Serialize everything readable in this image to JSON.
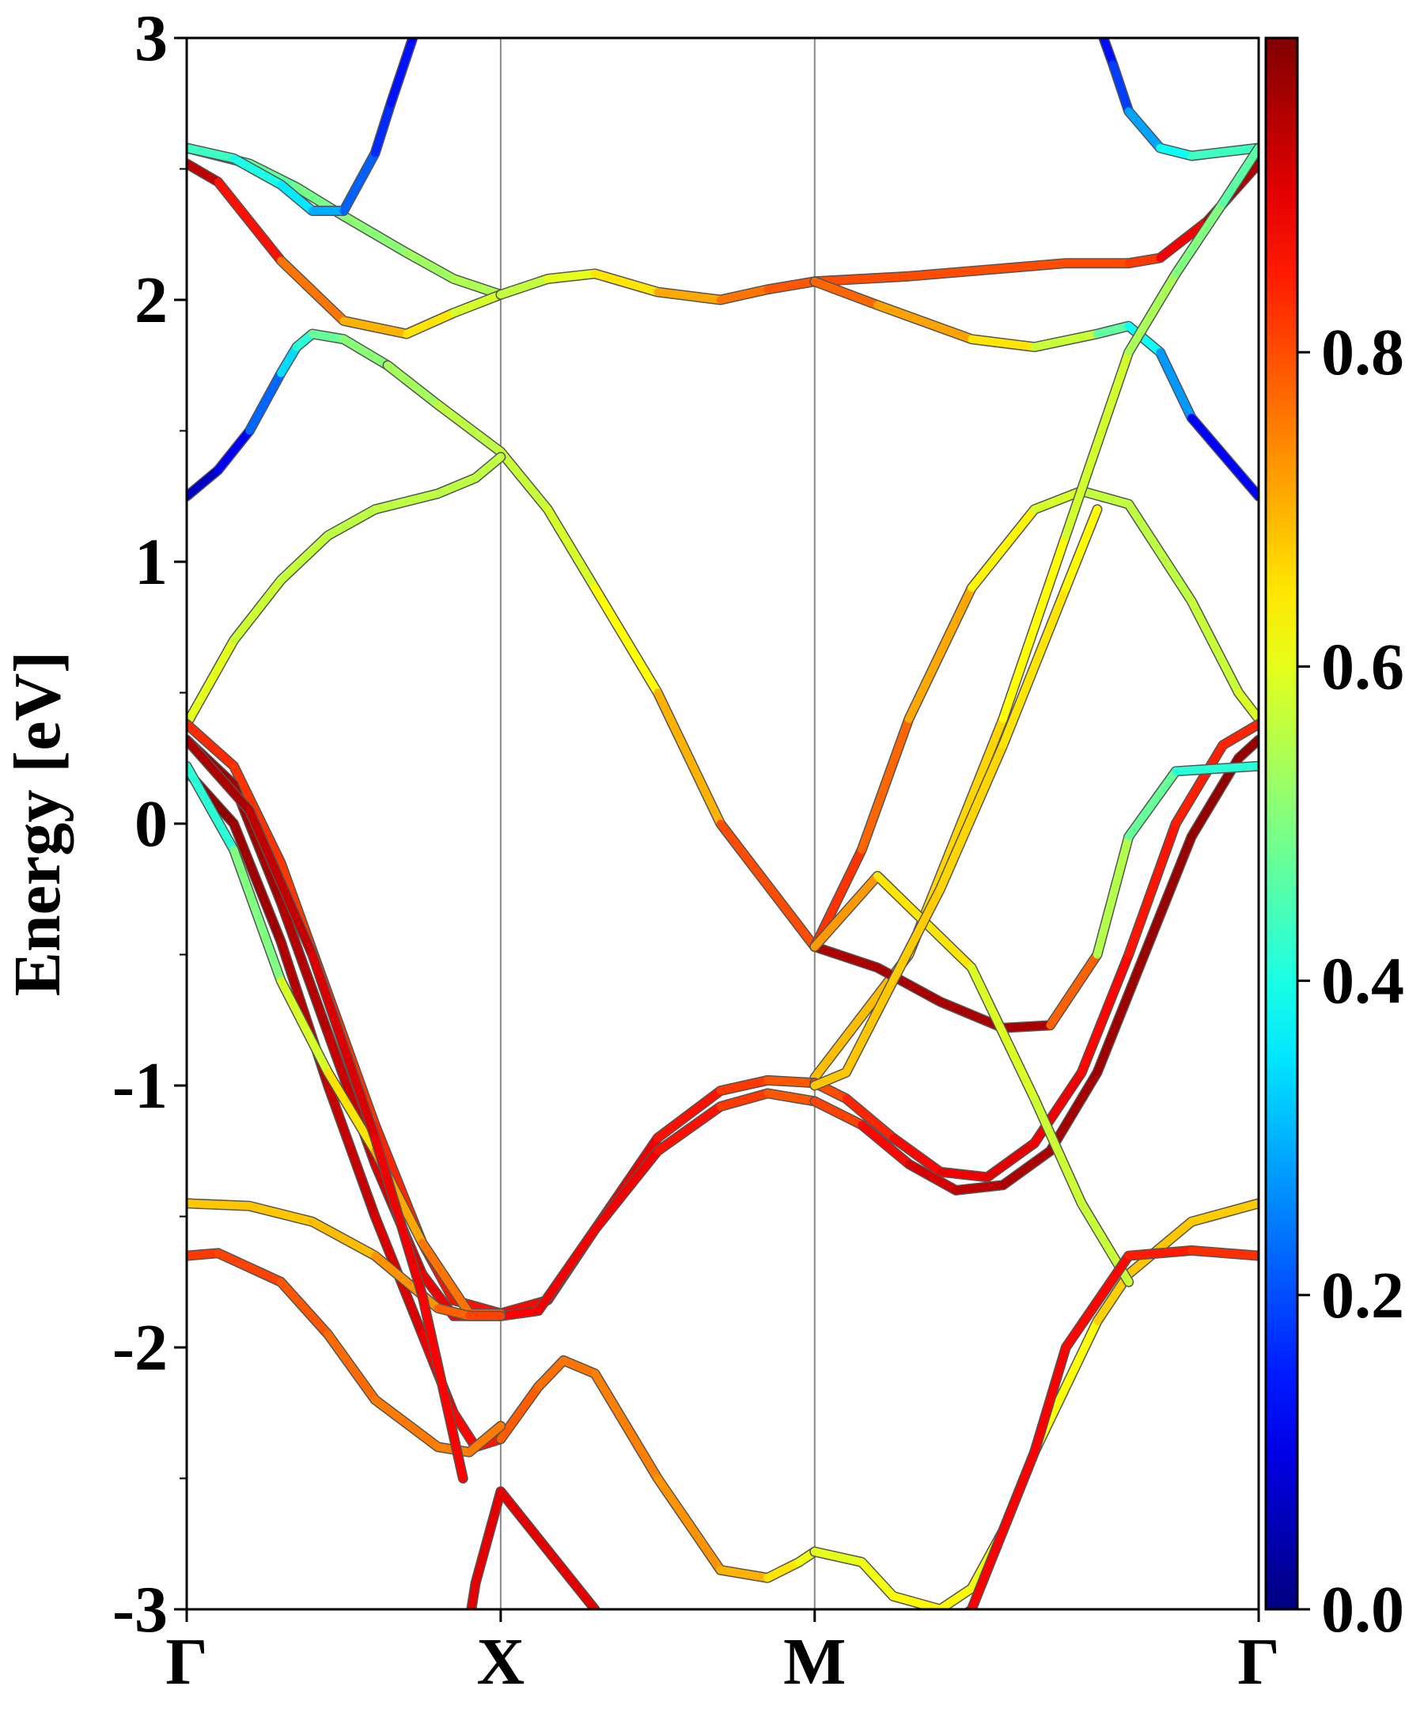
{
  "chart_data": {
    "type": "line",
    "ylabel": "Energy [eV]",
    "ylim": [
      -3,
      3
    ],
    "yticks": [
      -3,
      -2,
      -1,
      0,
      1,
      2,
      3
    ],
    "ytick_labels": [
      "-3",
      "-2",
      "-1",
      "0",
      "1",
      "2",
      "3"
    ],
    "kpath": {
      "labels": [
        "Γ",
        "X",
        "M",
        "Γ"
      ],
      "positions": [
        0.0,
        1.0,
        2.0,
        3.414
      ]
    },
    "kpath_vlines": true,
    "colorbar": {
      "colormap": "jet",
      "range": [
        0.0,
        1.0
      ],
      "tick_values": [
        0.0,
        0.2,
        0.4,
        0.6,
        0.8
      ],
      "tick_labels": [
        "0.0",
        "0.2",
        "0.4",
        "0.6",
        "0.8"
      ]
    },
    "series": [
      {
        "k": [
          0.0,
          0.1,
          0.2,
          0.3,
          0.35,
          0.4,
          0.5,
          0.64
        ],
        "E": [
          1.25,
          1.35,
          1.5,
          1.72,
          1.82,
          1.87,
          1.85,
          1.75
        ],
        "w": [
          0.05,
          0.08,
          0.15,
          0.3,
          0.38,
          0.45,
          0.5,
          0.52
        ]
      },
      {
        "k": [
          0.64,
          0.8,
          1.0,
          1.15,
          1.3,
          1.5,
          1.7,
          2.0
        ],
        "E": [
          1.75,
          1.6,
          1.42,
          1.2,
          0.9,
          0.5,
          0.0,
          -0.47
        ],
        "w": [
          0.52,
          0.55,
          0.57,
          0.57,
          0.6,
          0.65,
          0.75,
          0.85
        ]
      },
      {
        "k": [
          2.0,
          2.15,
          2.3,
          2.5,
          2.7,
          2.85,
          3.0,
          3.2,
          3.35,
          3.414
        ],
        "E": [
          -0.47,
          -0.1,
          0.4,
          0.9,
          1.2,
          1.27,
          1.22,
          0.85,
          0.5,
          0.4
        ],
        "w": [
          0.85,
          0.8,
          0.75,
          0.67,
          0.6,
          0.57,
          0.56,
          0.56,
          0.58,
          0.6
        ]
      },
      {
        "k": [
          0.0,
          0.15,
          0.3,
          0.45,
          0.6,
          0.8,
          0.92,
          1.0
        ],
        "E": [
          0.38,
          0.7,
          0.93,
          1.1,
          1.2,
          1.26,
          1.32,
          1.4
        ],
        "w": [
          0.62,
          0.58,
          0.57,
          0.56,
          0.56,
          0.56,
          0.56,
          0.56
        ]
      },
      {
        "k": [
          0.0,
          0.2,
          0.35,
          0.5,
          0.7,
          0.85,
          1.0
        ],
        "E": [
          2.58,
          2.52,
          2.43,
          2.32,
          2.18,
          2.08,
          2.02
        ],
        "w": [
          0.42,
          0.46,
          0.48,
          0.5,
          0.52,
          0.54,
          0.55
        ]
      },
      {
        "k": [
          0.0,
          0.1,
          0.3,
          0.5,
          0.7,
          0.85,
          1.0
        ],
        "E": [
          2.52,
          2.45,
          2.15,
          1.92,
          1.87,
          1.95,
          2.02
        ],
        "w": [
          0.96,
          0.92,
          0.8,
          0.72,
          0.68,
          0.62,
          0.55
        ]
      },
      {
        "k": [
          0.0,
          0.15,
          0.3,
          0.4,
          0.5,
          0.6,
          0.65,
          0.72,
          0.8,
          0.9
        ],
        "E": [
          2.58,
          2.54,
          2.44,
          2.34,
          2.34,
          2.56,
          2.75,
          3.0,
          3.3,
          3.6
        ],
        "w": [
          0.45,
          0.42,
          0.38,
          0.33,
          0.26,
          0.18,
          0.15,
          0.13,
          0.12,
          0.1
        ]
      },
      {
        "k": [
          1.0,
          1.15,
          1.3,
          1.5,
          1.7,
          1.85,
          2.0
        ],
        "E": [
          2.02,
          2.08,
          2.1,
          2.03,
          2.0,
          2.04,
          2.07
        ],
        "w": [
          0.55,
          0.58,
          0.62,
          0.68,
          0.74,
          0.78,
          0.8
        ]
      },
      {
        "k": [
          2.0,
          2.3,
          2.6,
          2.8,
          3.0,
          3.1,
          3.25,
          3.414
        ],
        "E": [
          2.07,
          2.09,
          2.12,
          2.14,
          2.14,
          2.16,
          2.3,
          2.52
        ],
        "w": [
          0.8,
          0.8,
          0.8,
          0.8,
          0.8,
          0.84,
          0.93,
          0.98
        ]
      },
      {
        "k": [
          2.0,
          2.2,
          2.5,
          2.7,
          2.9,
          3.0,
          3.1,
          3.2,
          3.414
        ],
        "E": [
          2.07,
          1.98,
          1.85,
          1.82,
          1.87,
          1.9,
          1.8,
          1.55,
          1.25
        ],
        "w": [
          0.8,
          0.75,
          0.68,
          0.62,
          0.52,
          0.42,
          0.35,
          0.2,
          0.05
        ]
      },
      {
        "k": [
          2.8,
          2.95,
          3.0,
          3.1,
          3.2,
          3.414
        ],
        "E": [
          3.4,
          2.9,
          2.72,
          2.58,
          2.55,
          2.58
        ],
        "w": [
          0.12,
          0.15,
          0.22,
          0.35,
          0.42,
          0.45
        ]
      },
      {
        "k": [
          2.0,
          2.3,
          2.6,
          2.8,
          3.0,
          3.15,
          3.3,
          3.414
        ],
        "E": [
          -0.97,
          -0.5,
          0.4,
          1.1,
          1.8,
          2.1,
          2.37,
          2.58
        ],
        "w": [
          0.7,
          0.68,
          0.65,
          0.6,
          0.56,
          0.52,
          0.48,
          0.45
        ]
      },
      {
        "k": [
          0.0,
          0.15,
          0.3,
          0.45,
          0.6,
          0.75,
          0.85,
          1.0
        ],
        "E": [
          0.38,
          0.22,
          -0.15,
          -0.65,
          -1.15,
          -1.6,
          -1.82,
          -1.87
        ],
        "w": [
          0.84,
          0.83,
          0.82,
          0.82,
          0.83,
          0.85,
          0.86,
          0.86
        ]
      },
      {
        "k": [
          1.0,
          1.15,
          1.3,
          1.5,
          1.7,
          1.85,
          2.0
        ],
        "E": [
          -1.87,
          -1.82,
          -1.55,
          -1.2,
          -1.02,
          -0.98,
          -0.99
        ],
        "w": [
          0.86,
          0.88,
          0.9,
          0.88,
          0.84,
          0.8,
          0.78
        ]
      },
      {
        "k": [
          2.0,
          2.1,
          2.25,
          2.4,
          2.55,
          2.7,
          2.85,
          3.0,
          3.15,
          3.3,
          3.414
        ],
        "E": [
          -0.99,
          -1.05,
          -1.2,
          -1.33,
          -1.35,
          -1.22,
          -0.95,
          -0.5,
          0.0,
          0.3,
          0.38
        ],
        "w": [
          0.78,
          0.82,
          0.86,
          0.88,
          0.9,
          0.9,
          0.88,
          0.86,
          0.85,
          0.84,
          0.84
        ]
      },
      {
        "k": [
          0.0,
          0.15,
          0.3,
          0.45,
          0.6,
          0.75,
          0.85,
          1.0
        ],
        "E": [
          0.32,
          0.15,
          -0.3,
          -0.8,
          -1.3,
          -1.72,
          -1.88,
          -1.88
        ],
        "w": [
          0.98,
          0.97,
          0.96,
          0.94,
          0.92,
          0.9,
          0.88,
          0.87
        ]
      },
      {
        "k": [
          1.0,
          1.12,
          1.3,
          1.5,
          1.7,
          1.85,
          2.0
        ],
        "E": [
          -1.88,
          -1.86,
          -1.55,
          -1.25,
          -1.08,
          -1.03,
          -1.06
        ],
        "w": [
          0.87,
          0.88,
          0.89,
          0.88,
          0.84,
          0.8,
          0.78
        ]
      },
      {
        "k": [
          2.0,
          2.15,
          2.3,
          2.45,
          2.6,
          2.75,
          2.9,
          3.05,
          3.2,
          3.35,
          3.414
        ],
        "E": [
          -1.06,
          -1.15,
          -1.3,
          -1.4,
          -1.38,
          -1.25,
          -0.95,
          -0.5,
          -0.05,
          0.25,
          0.32
        ],
        "w": [
          0.78,
          0.84,
          0.9,
          0.93,
          0.95,
          0.96,
          0.97,
          0.97,
          0.98,
          0.98,
          0.98
        ]
      },
      {
        "k": [
          0.0,
          0.15,
          0.3,
          0.45,
          0.6,
          0.75,
          0.85,
          0.92,
          1.0
        ],
        "E": [
          0.2,
          0.0,
          -0.45,
          -1.0,
          -1.5,
          -1.95,
          -2.25,
          -2.38,
          -2.35
        ],
        "w": [
          0.99,
          0.98,
          0.96,
          0.94,
          0.92,
          0.9,
          0.88,
          0.86,
          0.85
        ]
      },
      {
        "k": [
          1.0,
          1.12,
          1.2,
          1.3,
          1.5,
          1.7,
          1.85,
          1.95,
          2.0
        ],
        "E": [
          -2.35,
          -2.15,
          -2.05,
          -2.1,
          -2.5,
          -2.85,
          -2.88,
          -2.82,
          -2.78
        ],
        "w": [
          0.8,
          0.77,
          0.76,
          0.76,
          0.74,
          0.72,
          0.68,
          0.62,
          0.6
        ]
      },
      {
        "k": [
          2.0,
          2.15,
          2.25,
          2.4,
          2.5,
          2.6,
          2.7
        ],
        "E": [
          -2.78,
          -2.82,
          -2.95,
          -3.0,
          -2.92,
          -2.7,
          -2.4
        ],
        "w": [
          0.6,
          0.6,
          0.62,
          0.64,
          0.62,
          0.6,
          0.58
        ]
      },
      {
        "k": [
          2.7,
          2.9,
          3.0,
          3.2,
          3.414
        ],
        "E": [
          -2.4,
          -1.9,
          -1.72,
          -1.52,
          -1.45
        ],
        "w": [
          0.58,
          0.66,
          0.68,
          0.68,
          0.67
        ]
      },
      {
        "k": [
          0.0,
          0.15,
          0.3,
          0.45,
          0.6,
          0.75,
          0.9,
          1.0
        ],
        "E": [
          0.22,
          -0.1,
          -0.6,
          -0.95,
          -1.25,
          -1.6,
          -1.87,
          -1.87
        ],
        "w": [
          0.38,
          0.45,
          0.55,
          0.62,
          0.68,
          0.74,
          0.78,
          0.8
        ]
      },
      {
        "k": [
          0.0,
          0.2,
          0.4,
          0.6,
          0.8,
          0.9,
          1.0
        ],
        "E": [
          -1.45,
          -1.46,
          -1.52,
          -1.65,
          -1.85,
          -1.88,
          -1.88
        ],
        "w": [
          0.68,
          0.68,
          0.68,
          0.7,
          0.76,
          0.8,
          0.82
        ]
      },
      {
        "k": [
          2.0,
          2.2,
          2.4,
          2.6,
          2.75,
          2.9,
          3.0,
          3.15,
          3.414
        ],
        "E": [
          -0.47,
          -0.55,
          -0.68,
          -0.78,
          -0.77,
          -0.5,
          -0.05,
          0.2,
          0.22
        ],
        "w": [
          0.95,
          0.96,
          0.96,
          0.96,
          0.96,
          0.6,
          0.5,
          0.45,
          0.38
        ]
      },
      {
        "k": [
          2.0,
          2.2,
          2.5,
          2.7,
          2.85,
          3.0
        ],
        "E": [
          -0.47,
          -0.2,
          -0.55,
          -1.05,
          -1.45,
          -1.75
        ],
        "w": [
          0.75,
          0.7,
          0.6,
          0.58,
          0.57,
          0.57
        ]
      },
      {
        "k": [
          2.0,
          2.1,
          2.25,
          2.4,
          2.6,
          2.8,
          2.9
        ],
        "E": [
          -1.0,
          -0.95,
          -0.6,
          -0.25,
          0.3,
          0.9,
          1.2
        ],
        "w": [
          0.68,
          0.68,
          0.68,
          0.67,
          0.66,
          0.64,
          0.62
        ]
      },
      {
        "k": [
          0.0,
          0.1,
          0.3,
          0.45,
          0.6,
          0.8,
          0.9,
          1.0
        ],
        "E": [
          -1.65,
          -1.64,
          -1.75,
          -1.95,
          -2.2,
          -2.38,
          -2.4,
          -2.3
        ],
        "w": [
          0.82,
          0.82,
          0.8,
          0.78,
          0.76,
          0.75,
          0.75,
          0.76
        ]
      },
      {
        "k": [
          2.3,
          2.5,
          2.7,
          2.8,
          3.0,
          3.2,
          3.414
        ],
        "E": [
          -3.2,
          -3.0,
          -2.4,
          -2.0,
          -1.65,
          -1.63,
          -1.65
        ],
        "w": [
          0.88,
          0.88,
          0.88,
          0.88,
          0.86,
          0.84,
          0.82
        ]
      },
      {
        "k": [
          0.0,
          0.2,
          0.4,
          0.6,
          0.75,
          0.88
        ],
        "E": [
          0.32,
          0.05,
          -0.5,
          -1.2,
          -1.8,
          -2.5
        ],
        "w": [
          0.96,
          0.95,
          0.92,
          0.9,
          0.88,
          0.87
        ]
      },
      {
        "k": [
          0.88,
          0.92,
          1.0,
          1.1,
          1.2,
          1.3
        ],
        "E": [
          -3.2,
          -2.9,
          -2.55,
          -2.7,
          -2.85,
          -3.0
        ],
        "w": [
          0.9,
          0.9,
          0.9,
          0.9,
          0.9,
          0.9
        ]
      }
    ]
  }
}
